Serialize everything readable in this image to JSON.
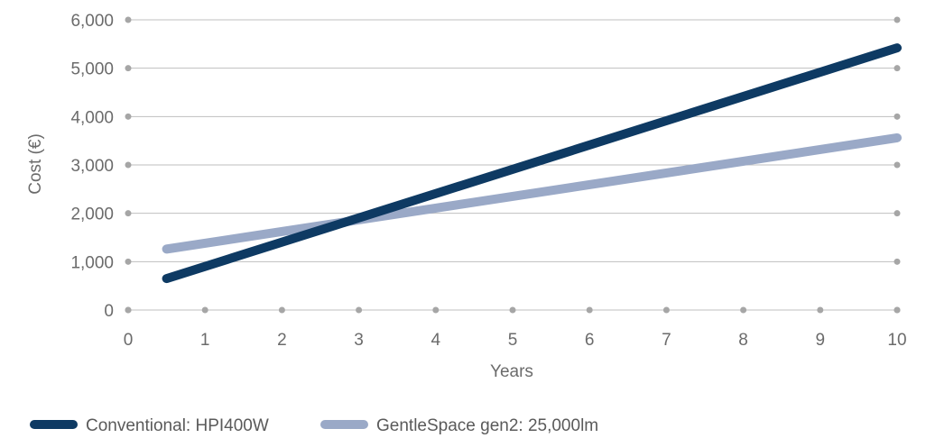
{
  "chart_data": {
    "type": "line",
    "title": "",
    "xlabel": "Years",
    "ylabel": "Cost (€)",
    "xlim": [
      0,
      10
    ],
    "ylim": [
      0,
      6000
    ],
    "x_ticks": [
      0,
      1,
      2,
      3,
      4,
      5,
      6,
      7,
      8,
      9,
      10
    ],
    "y_ticks": [
      0,
      1000,
      2000,
      3000,
      4000,
      5000,
      6000
    ],
    "y_tick_labels": [
      "0",
      "1,000",
      "2,000",
      "3,000",
      "4,000",
      "5,000",
      "6,000"
    ],
    "grid": "horizontal",
    "legend_position": "bottom-left",
    "series": [
      {
        "name": "Conventional: HPI400W",
        "color": "#0e3a63",
        "x": [
          0.5,
          10
        ],
        "y": [
          650,
          5420
        ]
      },
      {
        "name": "GentleSpace gen2: 25,000lm",
        "color": "#9aa9c7",
        "x": [
          0.5,
          10
        ],
        "y": [
          1260,
          3560
        ]
      }
    ],
    "colors": {
      "grid": "#bfbfbf",
      "grid_dot": "#a6a6a6",
      "text": "#6b6b6b"
    }
  }
}
